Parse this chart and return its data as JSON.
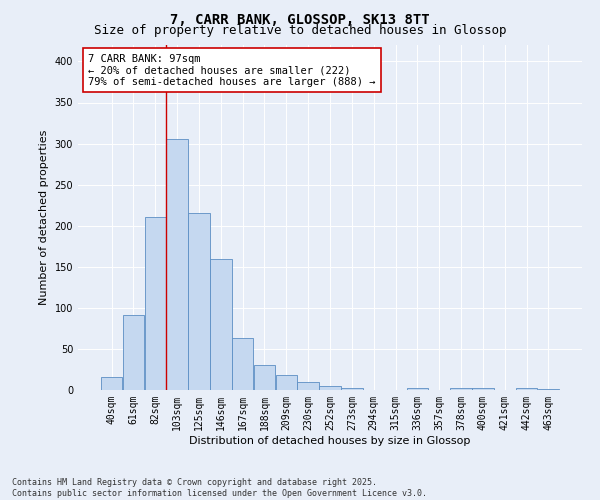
{
  "title_line1": "7, CARR BANK, GLOSSOP, SK13 8TT",
  "title_line2": "Size of property relative to detached houses in Glossop",
  "xlabel": "Distribution of detached houses by size in Glossop",
  "ylabel": "Number of detached properties",
  "categories": [
    "40sqm",
    "61sqm",
    "82sqm",
    "103sqm",
    "125sqm",
    "146sqm",
    "167sqm",
    "188sqm",
    "209sqm",
    "230sqm",
    "252sqm",
    "273sqm",
    "294sqm",
    "315sqm",
    "336sqm",
    "357sqm",
    "378sqm",
    "400sqm",
    "421sqm",
    "442sqm",
    "463sqm"
  ],
  "values": [
    16,
    91,
    211,
    305,
    216,
    160,
    63,
    30,
    18,
    10,
    5,
    3,
    0,
    0,
    3,
    0,
    3,
    3,
    0,
    2,
    1
  ],
  "bar_color": "#c5d8f0",
  "bar_edge_color": "#5b8ec4",
  "background_color": "#e8eef8",
  "vline_color": "#cc0000",
  "annotation_text": "7 CARR BANK: 97sqm\n← 20% of detached houses are smaller (222)\n79% of semi-detached houses are larger (888) →",
  "annotation_box_color": "#ffffff",
  "annotation_box_edge_color": "#cc0000",
  "ylim": [
    0,
    420
  ],
  "yticks": [
    0,
    50,
    100,
    150,
    200,
    250,
    300,
    350,
    400
  ],
  "footer_text": "Contains HM Land Registry data © Crown copyright and database right 2025.\nContains public sector information licensed under the Open Government Licence v3.0.",
  "title_fontsize": 10,
  "subtitle_fontsize": 9,
  "axis_label_fontsize": 8,
  "tick_fontsize": 7,
  "annotation_fontsize": 7.5,
  "footer_fontsize": 6
}
